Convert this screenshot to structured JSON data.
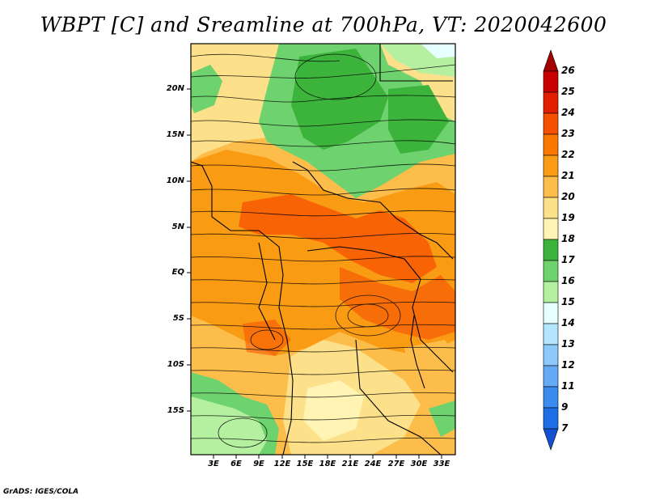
{
  "title": "WBPT [C] and Sreamline at 700hPa, VT: 2020042600",
  "credit": "GrADS: IGES/COLA",
  "lat_labels": [
    "20N",
    "15N",
    "10N",
    "5N",
    "EQ",
    "5S",
    "10S",
    "15S"
  ],
  "lon_labels": [
    "3E",
    "6E",
    "9E",
    "12E",
    "15E",
    "18E",
    "21E",
    "24E",
    "27E",
    "30E",
    "33E"
  ],
  "colorbar": {
    "labels": [
      "26",
      "25",
      "24",
      "23",
      "22",
      "21",
      "20",
      "19",
      "18",
      "17",
      "16",
      "15",
      "14",
      "13",
      "12",
      "11",
      "9",
      "7"
    ],
    "colors": [
      "#a50000",
      "#c80000",
      "#e11e00",
      "#f55000",
      "#fa7800",
      "#fa9b14",
      "#fcbd4a",
      "#fde08a",
      "#fff4b4",
      "#3cb43c",
      "#6ed26e",
      "#b4f0a0",
      "#e6ffff",
      "#b4e6ff",
      "#8cc8fa",
      "#64aaf5",
      "#3c8cf0",
      "#1e6ee6",
      "#1450d2"
    ]
  },
  "map_region": {
    "lon_range": [
      0,
      34
    ],
    "lat_range": [
      -20,
      24
    ]
  },
  "field_colors": {
    "green_dark": "#3cb43c",
    "green_mid": "#6ed26e",
    "green_light": "#b4f0a0",
    "yellow": "#fde08a",
    "orange_light": "#fcbd4a",
    "orange": "#fa9b14",
    "orange_dark": "#f55000"
  }
}
